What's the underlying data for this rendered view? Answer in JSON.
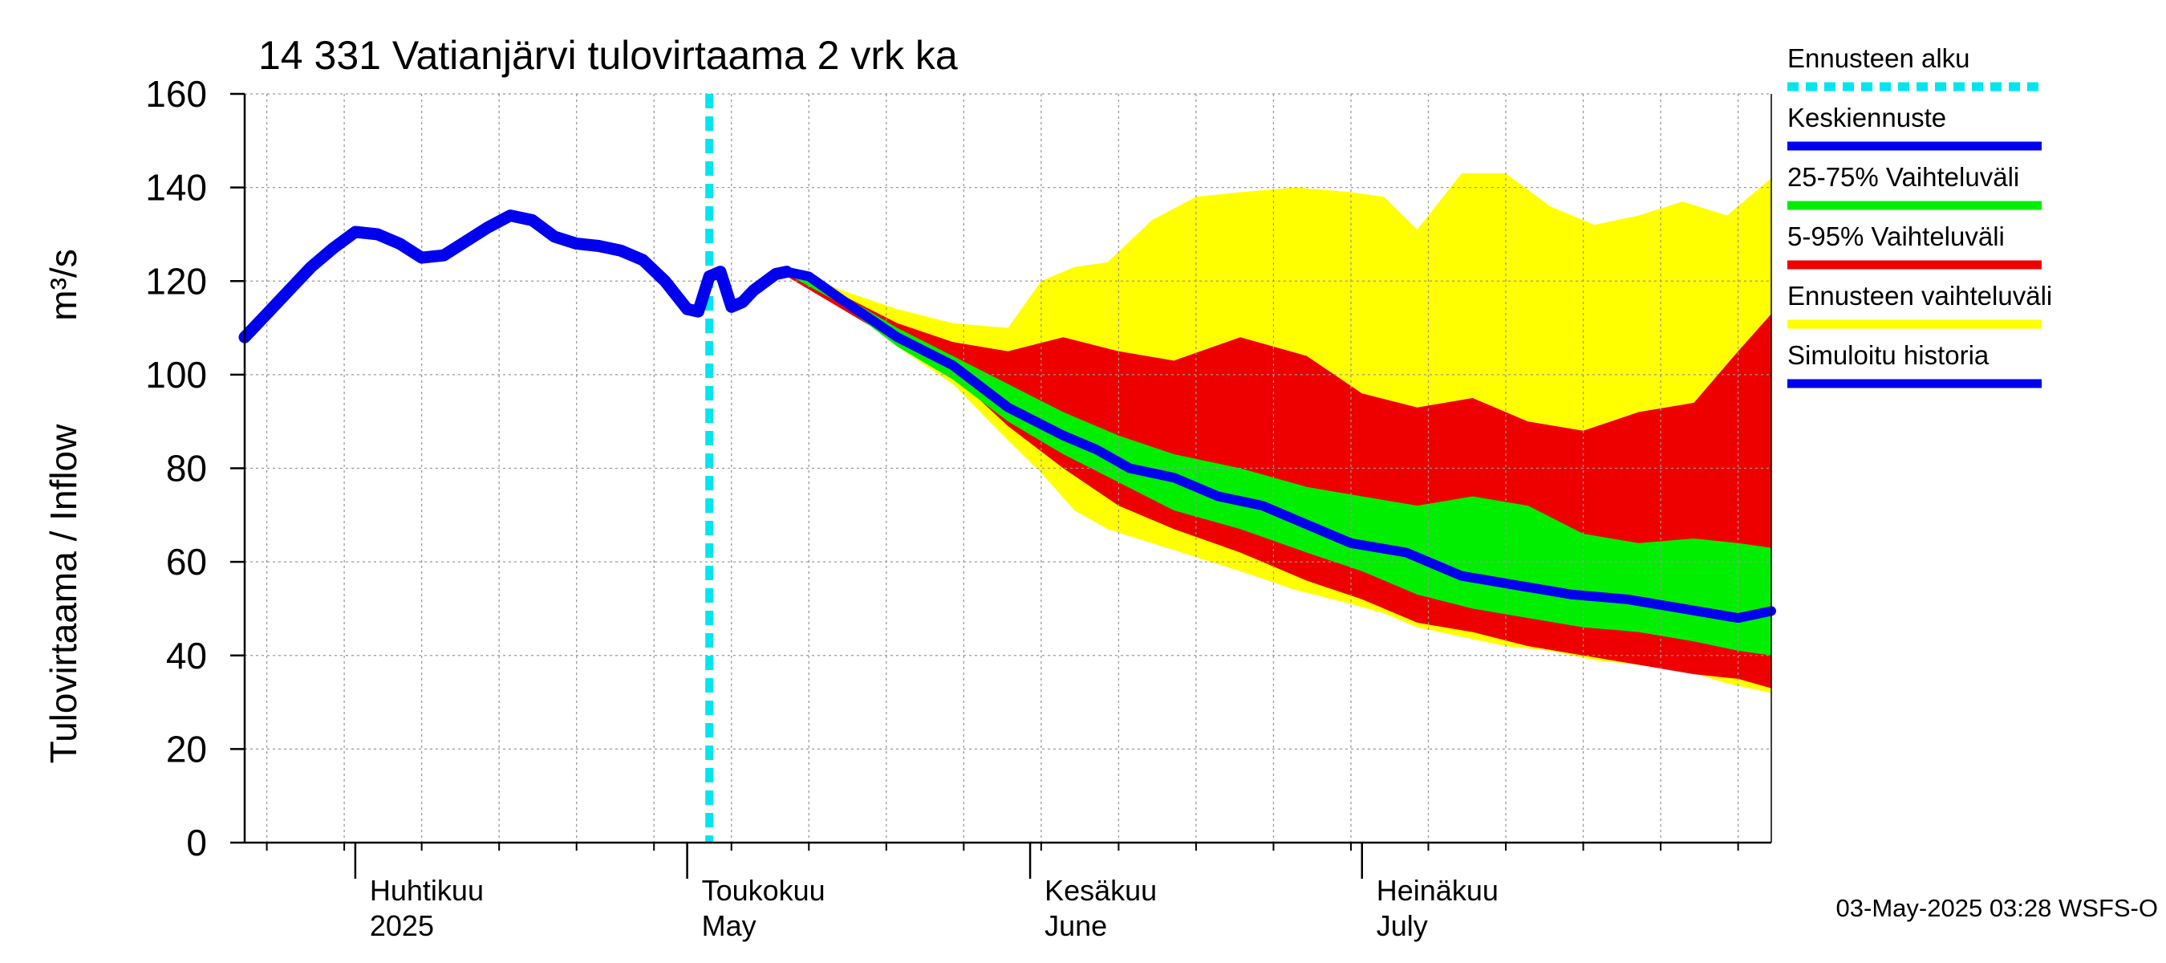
{
  "chart_data": {
    "type": "area",
    "title": "14 331 Vatianjärvi tulovirtaama 2 vrk ka",
    "ylabel": "Tulovirtaama / Inflow",
    "yunit": "m³/s",
    "ylim": [
      0,
      160
    ],
    "yticks": [
      0,
      20,
      40,
      60,
      80,
      100,
      120,
      140,
      160
    ],
    "xlim": [
      "2025-03-22",
      "2025-08-07"
    ],
    "grid": true,
    "legend_position": "right",
    "forecast_start": "2025-05-03",
    "month_labels": [
      {
        "date": "2025-04-01",
        "fi": "Huhtikuu",
        "en": "2025"
      },
      {
        "date": "2025-05-01",
        "fi": "Toukokuu",
        "en": "May"
      },
      {
        "date": "2025-06-01",
        "fi": "Kesäkuu",
        "en": "June"
      },
      {
        "date": "2025-07-01",
        "fi": "Heinäkuu",
        "en": "July"
      }
    ],
    "legend": [
      {
        "label": "Ennusteen alku",
        "color": "#00e5ee",
        "style": "dashed"
      },
      {
        "label": "Keskiennuste",
        "color": "#0000ee",
        "style": "line"
      },
      {
        "label": "25-75% Vaihteluväli",
        "color": "#00ee00",
        "style": "line"
      },
      {
        "label": "5-95% Vaihteluväli",
        "color": "#ee0000",
        "style": "line"
      },
      {
        "label": "Ennusteen vaihteluväli",
        "color": "#ffff00",
        "style": "line"
      },
      {
        "label": "Simuloitu historia",
        "color": "#0000ee",
        "style": "line"
      }
    ],
    "series": [
      {
        "role": "history",
        "color": "#0000ee",
        "points": [
          [
            "2025-03-22",
            108
          ],
          [
            "2025-03-24",
            113
          ],
          [
            "2025-03-26",
            118
          ],
          [
            "2025-03-28",
            123
          ],
          [
            "2025-03-30",
            127
          ],
          [
            "2025-04-01",
            130.5
          ],
          [
            "2025-04-03",
            130
          ],
          [
            "2025-04-05",
            128
          ],
          [
            "2025-04-07",
            125
          ],
          [
            "2025-04-09",
            125.5
          ],
          [
            "2025-04-11",
            128.5
          ],
          [
            "2025-04-13",
            131.5
          ],
          [
            "2025-04-15",
            134
          ],
          [
            "2025-04-17",
            133
          ],
          [
            "2025-04-19",
            129.5
          ],
          [
            "2025-04-21",
            128
          ],
          [
            "2025-04-23",
            127.5
          ],
          [
            "2025-04-25",
            126.5
          ],
          [
            "2025-04-27",
            124.5
          ],
          [
            "2025-04-29",
            120
          ],
          [
            "2025-05-01",
            114
          ],
          [
            "2025-05-02",
            113.5
          ],
          [
            "2025-05-03",
            121
          ],
          [
            "2025-05-04",
            122
          ],
          [
            "2025-05-05",
            114.5
          ],
          [
            "2025-05-06",
            115.5
          ],
          [
            "2025-05-07",
            118
          ],
          [
            "2025-05-09",
            121.5
          ],
          [
            "2025-05-10",
            122
          ]
        ]
      },
      {
        "role": "median",
        "color": "#0000ee",
        "points": [
          [
            "2025-05-10",
            122
          ],
          [
            "2025-05-12",
            121
          ],
          [
            "2025-05-15",
            116
          ],
          [
            "2025-05-20",
            108
          ],
          [
            "2025-05-25",
            102
          ],
          [
            "2025-05-30",
            93
          ],
          [
            "2025-06-04",
            87
          ],
          [
            "2025-06-07",
            84
          ],
          [
            "2025-06-10",
            80
          ],
          [
            "2025-06-14",
            78
          ],
          [
            "2025-06-18",
            74
          ],
          [
            "2025-06-22",
            72
          ],
          [
            "2025-06-26",
            68
          ],
          [
            "2025-06-30",
            64
          ],
          [
            "2025-07-05",
            62
          ],
          [
            "2025-07-10",
            57
          ],
          [
            "2025-07-15",
            55
          ],
          [
            "2025-07-20",
            53
          ],
          [
            "2025-07-25",
            52
          ],
          [
            "2025-07-30",
            50
          ],
          [
            "2025-08-04",
            48
          ],
          [
            "2025-08-07",
            49.5
          ]
        ]
      }
    ],
    "bands": [
      {
        "name": "Ennusteen vaihteluväli",
        "color": "#ffff00",
        "x": [
          "2025-05-10",
          "2025-05-15",
          "2025-05-20",
          "2025-05-25",
          "2025-05-30",
          "2025-06-02",
          "2025-06-05",
          "2025-06-08",
          "2025-06-12",
          "2025-06-16",
          "2025-06-20",
          "2025-06-25",
          "2025-06-30",
          "2025-07-03",
          "2025-07-06",
          "2025-07-10",
          "2025-07-14",
          "2025-07-18",
          "2025-07-22",
          "2025-07-26",
          "2025-07-30",
          "2025-08-03",
          "2025-08-07"
        ],
        "low": [
          121,
          115,
          106,
          98,
          86,
          79,
          71,
          67,
          64,
          61,
          58,
          54,
          51,
          49,
          46,
          44,
          42,
          41,
          39,
          38,
          37,
          34,
          32
        ],
        "high": [
          123,
          118,
          114,
          111,
          110,
          120,
          123,
          124,
          133,
          138,
          139,
          140,
          139,
          138,
          131,
          143,
          143,
          136,
          132,
          134,
          137,
          134,
          142
        ]
      },
      {
        "name": "5-95% Vaihteluväli",
        "color": "#ee0000",
        "x": [
          "2025-05-10",
          "2025-05-15",
          "2025-05-20",
          "2025-05-25",
          "2025-05-30",
          "2025-06-04",
          "2025-06-09",
          "2025-06-14",
          "2025-06-20",
          "2025-06-26",
          "2025-07-01",
          "2025-07-06",
          "2025-07-11",
          "2025-07-16",
          "2025-07-21",
          "2025-07-26",
          "2025-07-31",
          "2025-08-04",
          "2025-08-07"
        ],
        "low": [
          121,
          114,
          107,
          100,
          89,
          80,
          72,
          67,
          62,
          56,
          52,
          47,
          45,
          42,
          40,
          38,
          36,
          35,
          33
        ],
        "high": [
          123,
          117,
          111,
          107,
          105,
          108,
          105,
          103,
          108,
          104,
          96,
          93,
          95,
          90,
          88,
          92,
          94,
          105,
          113
        ]
      },
      {
        "name": "25-75% Vaihteluväli",
        "color": "#00ee00",
        "x": [
          "2025-05-10",
          "2025-05-15",
          "2025-05-20",
          "2025-05-25",
          "2025-05-30",
          "2025-06-04",
          "2025-06-09",
          "2025-06-14",
          "2025-06-20",
          "2025-06-26",
          "2025-07-01",
          "2025-07-06",
          "2025-07-11",
          "2025-07-16",
          "2025-07-21",
          "2025-07-26",
          "2025-07-31",
          "2025-08-04",
          "2025-08-07"
        ],
        "low": [
          121.5,
          115,
          106,
          99,
          90,
          83,
          77,
          71,
          67,
          62,
          58,
          53,
          50,
          48,
          46,
          45,
          43,
          41,
          40
        ],
        "high": [
          122.5,
          117,
          110,
          104,
          98,
          92,
          87,
          83,
          80,
          76,
          74,
          72,
          74,
          72,
          66,
          64,
          65,
          64,
          63
        ]
      }
    ],
    "timestamp": "03-May-2025 03:28 WSFS-O"
  }
}
